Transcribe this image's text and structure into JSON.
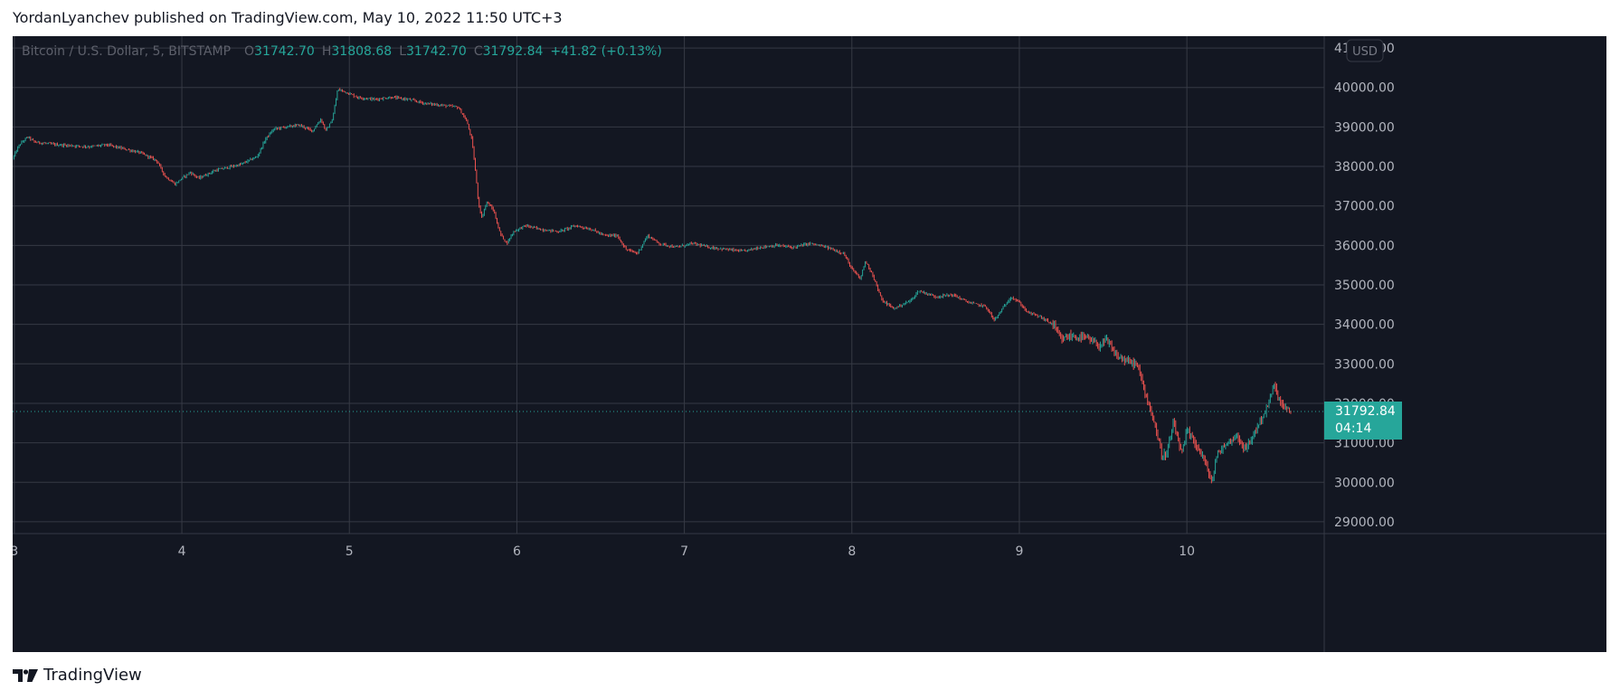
{
  "header": {
    "text": "YordanLyanchev published on TradingView.com, May 10, 2022 11:50 UTC+3"
  },
  "footer": {
    "brand": "TradingView"
  },
  "colors": {
    "background": "#131722",
    "grid": "#363a45",
    "text": "#b2b5be",
    "up": "#26a69a",
    "down": "#ef5350",
    "price_tag": "#26a69a"
  },
  "legend": {
    "symbol": "Bitcoin / U.S. Dollar, 5, BITSTAMP",
    "o_label": "O",
    "o_value": "31742.70",
    "h_label": "H",
    "h_value": "31808.68",
    "l_label": "L",
    "l_value": "31742.70",
    "c_label": "C",
    "c_value": "31792.84",
    "change": "+41.82 (+0.13%)"
  },
  "currency_button": "USD",
  "price_tag": {
    "price": "31792.84",
    "countdown": "04:14"
  },
  "chart_data": {
    "type": "candlestick",
    "symbol": "Bitcoin / U.S. Dollar, 5, BITSTAMP",
    "xlabel": "",
    "ylabel": "",
    "ylim": [
      28700,
      41300
    ],
    "xlim": [
      2.99,
      10.82
    ],
    "y_ticks": [
      {
        "value": 41000,
        "label": "41000.00"
      },
      {
        "value": 40000,
        "label": "40000.00"
      },
      {
        "value": 39000,
        "label": "39000.00"
      },
      {
        "value": 38000,
        "label": "38000.00"
      },
      {
        "value": 37000,
        "label": "37000.00"
      },
      {
        "value": 36000,
        "label": "36000.00"
      },
      {
        "value": 35000,
        "label": "35000.00"
      },
      {
        "value": 34000,
        "label": "34000.00"
      },
      {
        "value": 33000,
        "label": "33000.00"
      },
      {
        "value": 32000,
        "label": "32000.00"
      },
      {
        "value": 31000,
        "label": "31000.00"
      },
      {
        "value": 30000,
        "label": "30000.00"
      },
      {
        "value": 29000,
        "label": "29000.00"
      }
    ],
    "x_ticks": [
      {
        "value": 3,
        "label": "3"
      },
      {
        "value": 4,
        "label": "4"
      },
      {
        "value": 5,
        "label": "5"
      },
      {
        "value": 6,
        "label": "6"
      },
      {
        "value": 7,
        "label": "7"
      },
      {
        "value": 8,
        "label": "8"
      },
      {
        "value": 9,
        "label": "9"
      },
      {
        "value": 10,
        "label": "10"
      }
    ],
    "grid": true,
    "last_price": 31792.84,
    "price_path": [
      [
        2.99,
        38200
      ],
      [
        3.03,
        38550
      ],
      [
        3.08,
        38750
      ],
      [
        3.12,
        38620
      ],
      [
        3.25,
        38550
      ],
      [
        3.45,
        38500
      ],
      [
        3.55,
        38550
      ],
      [
        3.65,
        38450
      ],
      [
        3.75,
        38350
      ],
      [
        3.85,
        38150
      ],
      [
        3.9,
        37750
      ],
      [
        3.96,
        37550
      ],
      [
        4.0,
        37700
      ],
      [
        4.05,
        37850
      ],
      [
        4.1,
        37700
      ],
      [
        4.2,
        37900
      ],
      [
        4.35,
        38050
      ],
      [
        4.45,
        38250
      ],
      [
        4.5,
        38700
      ],
      [
        4.55,
        38950
      ],
      [
        4.62,
        39000
      ],
      [
        4.7,
        39050
      ],
      [
        4.78,
        38900
      ],
      [
        4.83,
        39200
      ],
      [
        4.86,
        38900
      ],
      [
        4.9,
        39200
      ],
      [
        4.93,
        39950
      ],
      [
        4.97,
        39900
      ],
      [
        5.05,
        39750
      ],
      [
        5.15,
        39700
      ],
      [
        5.25,
        39750
      ],
      [
        5.35,
        39700
      ],
      [
        5.45,
        39600
      ],
      [
        5.55,
        39550
      ],
      [
        5.65,
        39500
      ],
      [
        5.7,
        39150
      ],
      [
        5.73,
        38700
      ],
      [
        5.75,
        38000
      ],
      [
        5.77,
        37100
      ],
      [
        5.79,
        36700
      ],
      [
        5.82,
        37100
      ],
      [
        5.86,
        36900
      ],
      [
        5.9,
        36300
      ],
      [
        5.94,
        36050
      ],
      [
        5.98,
        36350
      ],
      [
        6.05,
        36500
      ],
      [
        6.15,
        36400
      ],
      [
        6.25,
        36350
      ],
      [
        6.35,
        36500
      ],
      [
        6.45,
        36400
      ],
      [
        6.52,
        36250
      ],
      [
        6.6,
        36250
      ],
      [
        6.65,
        35900
      ],
      [
        6.72,
        35800
      ],
      [
        6.78,
        36250
      ],
      [
        6.85,
        36050
      ],
      [
        6.95,
        35950
      ],
      [
        7.05,
        36050
      ],
      [
        7.15,
        35950
      ],
      [
        7.25,
        35900
      ],
      [
        7.35,
        35850
      ],
      [
        7.45,
        35950
      ],
      [
        7.55,
        36000
      ],
      [
        7.65,
        35950
      ],
      [
        7.75,
        36050
      ],
      [
        7.85,
        35950
      ],
      [
        7.95,
        35800
      ],
      [
        8.0,
        35400
      ],
      [
        8.05,
        35150
      ],
      [
        8.08,
        35600
      ],
      [
        8.12,
        35300
      ],
      [
        8.18,
        34600
      ],
      [
        8.25,
        34400
      ],
      [
        8.35,
        34600
      ],
      [
        8.4,
        34850
      ],
      [
        8.5,
        34700
      ],
      [
        8.6,
        34750
      ],
      [
        8.7,
        34550
      ],
      [
        8.8,
        34450
      ],
      [
        8.85,
        34100
      ],
      [
        8.9,
        34400
      ],
      [
        8.95,
        34700
      ],
      [
        9.0,
        34550
      ],
      [
        9.05,
        34300
      ],
      [
        9.12,
        34200
      ],
      [
        9.2,
        34000
      ],
      [
        9.25,
        33600
      ],
      [
        9.3,
        33700
      ],
      [
        9.4,
        33650
      ],
      [
        9.48,
        33450
      ],
      [
        9.52,
        33600
      ],
      [
        9.58,
        33200
      ],
      [
        9.65,
        33050
      ],
      [
        9.7,
        33000
      ],
      [
        9.75,
        32300
      ],
      [
        9.8,
        31600
      ],
      [
        9.85,
        30700
      ],
      [
        9.88,
        30700
      ],
      [
        9.92,
        31500
      ],
      [
        9.97,
        30700
      ],
      [
        10.0,
        31300
      ],
      [
        10.05,
        31000
      ],
      [
        10.1,
        30600
      ],
      [
        10.15,
        30000
      ],
      [
        10.18,
        30700
      ],
      [
        10.22,
        30900
      ],
      [
        10.3,
        31200
      ],
      [
        10.35,
        30800
      ],
      [
        10.42,
        31400
      ],
      [
        10.48,
        31900
      ],
      [
        10.52,
        32450
      ],
      [
        10.56,
        32000
      ],
      [
        10.6,
        31800
      ],
      [
        10.62,
        31793
      ]
    ]
  }
}
